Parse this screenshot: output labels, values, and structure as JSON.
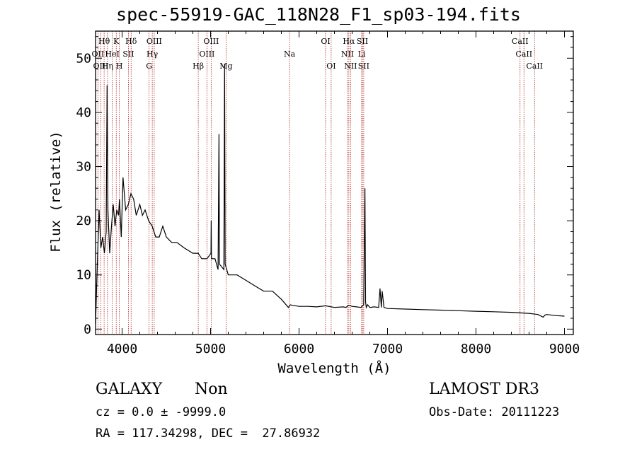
{
  "chart_data": {
    "type": "line",
    "title": "spec-55919-GAC_118N28_F1_sp03-194.fits",
    "xlabel": "Wavelength (Å)",
    "ylabel": "Flux (relative)",
    "xlim": [
      3700,
      9100
    ],
    "ylim": [
      -1,
      55
    ],
    "xticks": [
      4000,
      5000,
      6000,
      7000,
      8000,
      9000
    ],
    "yticks": [
      0,
      10,
      20,
      30,
      40,
      50
    ],
    "grid": false,
    "series": [
      {
        "x": [
          3700,
          3720,
          3740,
          3760,
          3780,
          3800,
          3820,
          3830,
          3840,
          3860,
          3880,
          3900,
          3920,
          3940,
          3960,
          3970,
          3990,
          4010,
          4040,
          4070,
          4100,
          4130,
          4160,
          4200,
          4230,
          4260,
          4300,
          4340,
          4380,
          4420,
          4460,
          4500,
          4560,
          4620,
          4700,
          4800,
          4860,
          4900,
          4960,
          5005,
          5007,
          5010,
          5050,
          5085,
          5095,
          5100,
          5150,
          5158,
          5165,
          5200,
          5300,
          5400,
          5500,
          5600,
          5700,
          5800,
          5880,
          5900,
          5920,
          6000,
          6100,
          6200,
          6300,
          6400,
          6500,
          6530,
          6560,
          6600,
          6650,
          6700,
          6730,
          6745,
          6752,
          6760,
          6775,
          6800,
          6850,
          6900,
          6915,
          6930,
          6940,
          6960,
          7000,
          7200,
          7400,
          7600,
          7800,
          8000,
          8200,
          8400,
          8600,
          8700,
          8760,
          8780,
          8800,
          8900,
          9000
        ],
        "y": [
          1,
          12,
          22,
          15,
          17,
          14,
          18,
          45,
          22,
          14,
          19,
          23,
          19,
          22,
          21,
          24,
          17,
          28,
          22,
          23,
          25,
          24,
          21,
          23,
          21,
          22,
          20,
          19,
          17,
          17,
          19,
          17,
          16,
          16,
          15,
          14,
          14,
          13,
          13,
          14,
          20,
          13,
          13,
          11,
          36,
          12,
          11,
          49,
          12,
          10,
          10,
          9,
          8,
          7,
          7,
          5.5,
          4,
          4.5,
          4.4,
          4.2,
          4.2,
          4.1,
          4.3,
          4.0,
          4.1,
          4.0,
          4.4,
          4.2,
          4.1,
          4.0,
          4.5,
          26,
          5,
          4,
          4.5,
          4.0,
          4.1,
          4.0,
          7.5,
          4.0,
          7,
          4.0,
          3.8,
          3.7,
          3.6,
          3.5,
          3.4,
          3.3,
          3.2,
          3.1,
          2.9,
          2.7,
          2.2,
          2.6,
          2.7,
          2.5,
          2.4
        ]
      }
    ],
    "lines": [
      {
        "label": "OII",
        "wl": 3727,
        "row": 2
      },
      {
        "label": "OIII",
        "wl": 3760,
        "row": 3
      },
      {
        "label": "Hθ",
        "wl": 3797,
        "row": 1
      },
      {
        "label": "Hη",
        "wl": 3835,
        "row": 3
      },
      {
        "label": "HeI",
        "wl": 3889,
        "row": 2
      },
      {
        "label": "K",
        "wl": 3934,
        "row": 1
      },
      {
        "label": "H",
        "wl": 3969,
        "row": 3
      },
      {
        "label": "Hδ",
        "wl": 4102,
        "row": 1
      },
      {
        "label": "SII",
        "wl": 4072,
        "row": 2
      },
      {
        "label": "OIII",
        "wl": 4363,
        "row": 1
      },
      {
        "label": "Hγ",
        "wl": 4341,
        "row": 2
      },
      {
        "label": "G",
        "wl": 4305,
        "row": 3
      },
      {
        "label": "OIII",
        "wl": 5007,
        "row": 1
      },
      {
        "label": "OIII",
        "wl": 4959,
        "row": 2
      },
      {
        "label": "Hβ",
        "wl": 4861,
        "row": 3
      },
      {
        "label": "Mg",
        "wl": 5175,
        "row": 3
      },
      {
        "label": "Na",
        "wl": 5893,
        "row": 2
      },
      {
        "label": "OI",
        "wl": 6300,
        "row": 1
      },
      {
        "label": "OI",
        "wl": 6363,
        "row": 3
      },
      {
        "label": "Hα",
        "wl": 6563,
        "row": 1
      },
      {
        "label": "NII",
        "wl": 6548,
        "row": 2
      },
      {
        "label": "NII",
        "wl": 6583,
        "row": 3
      },
      {
        "label": "SII",
        "wl": 6716,
        "row": 1
      },
      {
        "label": "Li",
        "wl": 6708,
        "row": 2
      },
      {
        "label": "SII",
        "wl": 6731,
        "row": 3
      },
      {
        "label": "CaII",
        "wl": 8498,
        "row": 1
      },
      {
        "label": "CaII",
        "wl": 8542,
        "row": 2
      },
      {
        "label": "CaII",
        "wl": 8662,
        "row": 3
      }
    ]
  },
  "info": {
    "class": "GALAXY",
    "subclass": "Non",
    "survey": "LAMOST DR3",
    "cz": "cz = 0.0 ± -9999.0",
    "obs_date": "Obs-Date: 20111223",
    "radec": "RA = 117.34298, DEC =  27.86932"
  },
  "colors": {
    "spectrum": "#000000",
    "line_marker": "#b22222"
  }
}
